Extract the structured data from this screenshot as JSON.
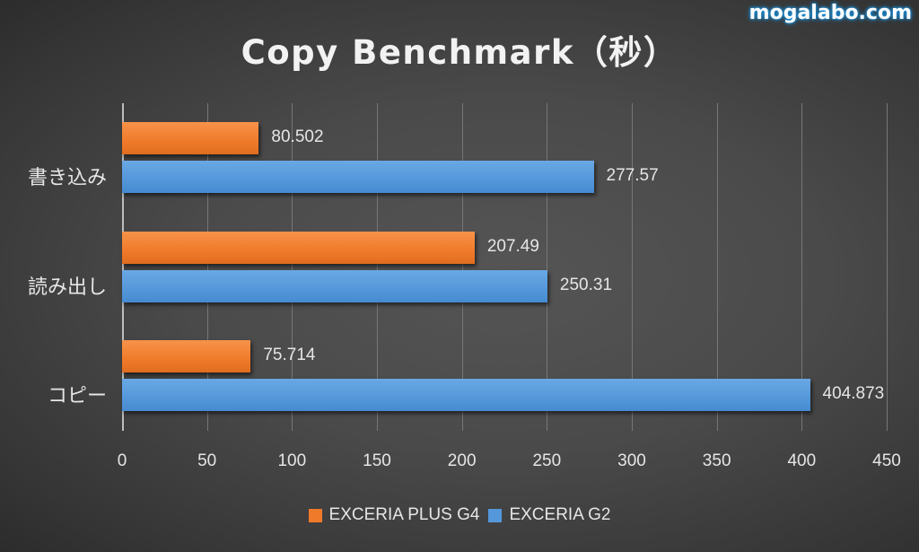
{
  "watermark": "mogalabo.com",
  "title": "Copy Benchmark（秒）",
  "colors": {
    "series1": "#ef7a2a",
    "series2": "#5497da",
    "background": "#4a4a4a"
  },
  "chart_data": {
    "type": "bar",
    "orientation": "horizontal",
    "title": "Copy Benchmark（秒）",
    "xlabel": "",
    "ylabel": "",
    "categories": [
      "書き込み",
      "読み出し",
      "コピー"
    ],
    "series": [
      {
        "name": "EXCERIA PLUS G4",
        "color": "#ef7a2a",
        "values": [
          80.502,
          207.49,
          75.714
        ],
        "labels": [
          "80.502",
          "207.49",
          "75.714"
        ]
      },
      {
        "name": "EXCERIA G2",
        "color": "#5497da",
        "values": [
          277.57,
          250.31,
          404.873
        ],
        "labels": [
          "277.57",
          "250.31",
          "404.873"
        ]
      }
    ],
    "xlim": [
      0,
      450
    ],
    "xticks": [
      "0",
      "50",
      "100",
      "150",
      "200",
      "250",
      "300",
      "350",
      "400",
      "450"
    ],
    "grid": true,
    "legend_position": "bottom"
  },
  "legend": [
    {
      "label": "EXCERIA PLUS G4"
    },
    {
      "label": "EXCERIA G2"
    }
  ]
}
